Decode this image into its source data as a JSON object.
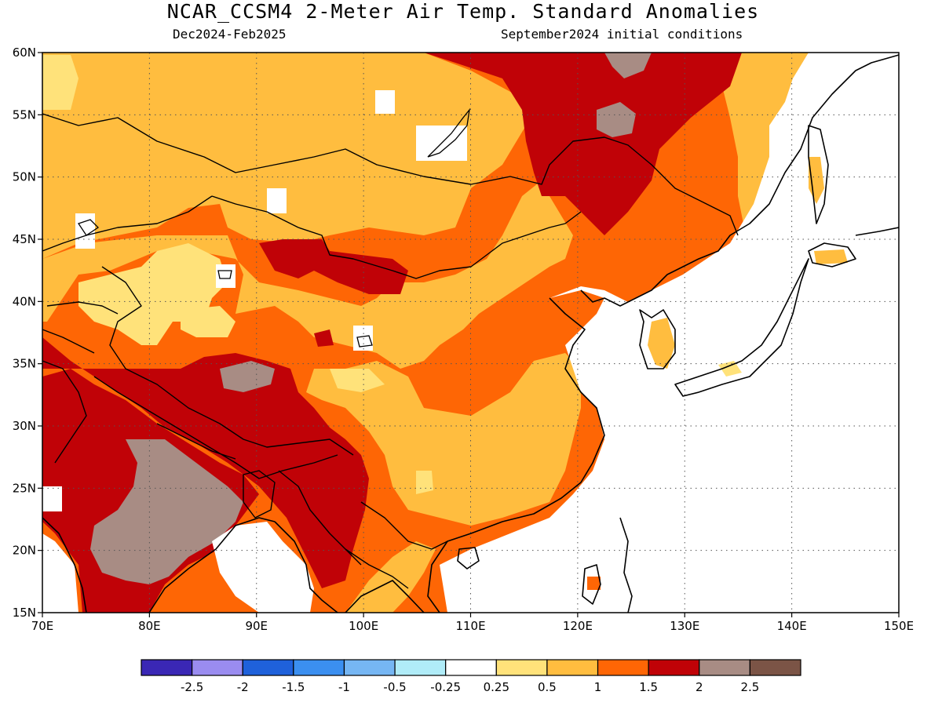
{
  "header": {
    "title": "NCAR_CCSM4 2-Meter Air Temp. Standard Anomalies",
    "period": "Dec2024-Feb2025",
    "init": "September2024 initial conditions"
  },
  "map": {
    "lon_range": [
      70,
      150
    ],
    "lat_range": [
      15,
      60
    ],
    "lon_ticks": [
      "70E",
      "80E",
      "90E",
      "100E",
      "110E",
      "120E",
      "130E",
      "140E",
      "150E"
    ],
    "lat_ticks": [
      "60N",
      "55N",
      "50N",
      "45N",
      "40N",
      "35N",
      "30N",
      "25N",
      "20N",
      "15N"
    ],
    "land_mask_color": "#ffffff",
    "dotted_grid": true
  },
  "legend": {
    "colors": [
      "#3a27b5",
      "#9a8cf0",
      "#1f61db",
      "#3b8ff0",
      "#76b6f3",
      "#b0ecf8",
      "#ffffff",
      "#ffe27a",
      "#ffbd3f",
      "#fe6605",
      "#c00207",
      "#a88c84",
      "#7b5446"
    ],
    "labels": [
      "-2.5",
      "-2",
      "-1.5",
      "-1",
      "-0.5",
      "-0.25",
      "0.25",
      "0.5",
      "1",
      "1.5",
      "2",
      "2.5"
    ]
  }
}
